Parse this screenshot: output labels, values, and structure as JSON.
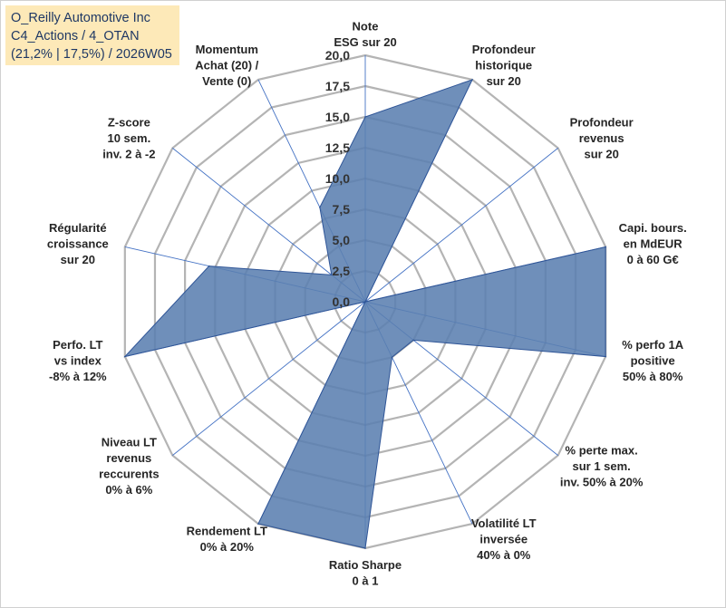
{
  "title": {
    "line1": "O_Reilly Automotive Inc",
    "line2": "C4_Actions / 4_OTAN",
    "line3": "(21,2% | 17,5%) / 2026W05"
  },
  "chart_data": {
    "type": "radar",
    "title": "O_Reilly Automotive Inc — C4_Actions / 4_OTAN — (21,2% | 17,5%) / 2026W05",
    "rlim": [
      0,
      20
    ],
    "ticks": [
      "0,0",
      "2,5",
      "5,0",
      "7,5",
      "10,0",
      "12,5",
      "15,0",
      "17,5",
      "20,0"
    ],
    "tick_values": [
      0,
      2.5,
      5,
      7.5,
      10,
      12.5,
      15,
      17.5,
      20
    ],
    "categories": [
      "Note ESG sur 20",
      "Profondeur historique sur 20",
      "Profondeur revenus sur 20",
      "Capi. bours. en MdEUR 0 à 60 G€",
      "% perfo 1A positive 50% à 80%",
      "% perte max. sur 1 sem. inv. 50% à 20%",
      "Volatilité LT inversée 40% à 0%",
      "Ratio Sharpe 0 à 1",
      "Rendement LT 0% à 20%",
      "Niveau LT revenus reccurents 0% à 6%",
      "Perfo. LT vs index -8% à 12%",
      "Régularité croissance sur 20",
      "Z-score 10 sem. inv. 2 à -2",
      "Momentum Achat (20) / Vente (0)"
    ],
    "label_lines": [
      [
        "Note",
        "ESG sur 20"
      ],
      [
        "Profondeur",
        "historique",
        "sur 20"
      ],
      [
        "Profondeur",
        "revenus",
        "sur 20"
      ],
      [
        "Capi. bours.",
        "en MdEUR",
        "0 à 60 G€"
      ],
      [
        "% perfo 1A",
        "positive",
        "50% à 80%"
      ],
      [
        "% perte max.",
        "sur 1 sem.",
        "inv. 50% à 20%"
      ],
      [
        "Volatilité LT",
        "inversée",
        "40% à 0%"
      ],
      [
        "Ratio Sharpe",
        "0 à 1"
      ],
      [
        "Rendement LT",
        "0% à 20%"
      ],
      [
        "Niveau LT",
        "revenus",
        "reccurents",
        "0% à 6%"
      ],
      [
        "Perfo. LT",
        "vs index",
        "-8% à 12%"
      ],
      [
        "Régularité",
        "croissance",
        "sur 20"
      ],
      [
        "Z-score",
        "10 sem.",
        "inv. 2 à -2"
      ],
      [
        "Momentum",
        "Achat (20) /",
        "Vente (0)"
      ]
    ],
    "series": [
      {
        "name": "O_Reilly Automotive Inc",
        "values": [
          15.0,
          20.0,
          0.0,
          20.0,
          20.0,
          5.0,
          5.0,
          20.0,
          20.0,
          0.0,
          20.0,
          13.0,
          3.5,
          8.5
        ]
      }
    ],
    "fill_color": "#5b7fb0",
    "line_color": "#2f5597",
    "grid_color": "#b4b4b4",
    "spoke_color": "#4472c4"
  }
}
